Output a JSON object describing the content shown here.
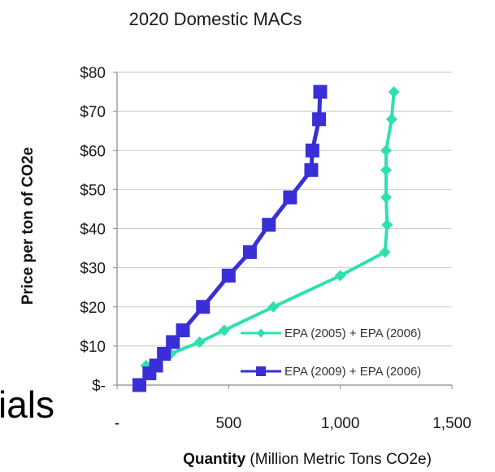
{
  "background_fragment": "ials",
  "chart_data": {
    "type": "line",
    "title": "2020 Domestic MACs",
    "ylabel": "Price per ton of CO2e",
    "xlabel_bold": "Quantity",
    "xlabel_rest": " (Million Metric Tons CO2e)",
    "xlim": [
      0,
      1500
    ],
    "ylim": [
      0,
      80
    ],
    "x_ticks": [
      0,
      500,
      1000,
      1500
    ],
    "x_tick_labels": [
      "-",
      "500",
      "1,000",
      "1,500"
    ],
    "y_ticks": [
      0,
      10,
      20,
      30,
      40,
      50,
      60,
      70,
      80
    ],
    "y_tick_labels": [
      "$-",
      "$10",
      "$20",
      "$30",
      "$40",
      "$50",
      "$60",
      "$70",
      "$80"
    ],
    "grid": "horizontal",
    "legend_position": "lower-right",
    "series": [
      {
        "name": "EPA (2005) + EPA (2006)",
        "color": "#2ee0b0",
        "marker": "diamond",
        "points": [
          [
            130,
            5
          ],
          [
            240,
            8
          ],
          [
            370,
            11
          ],
          [
            480,
            14
          ],
          [
            700,
            20
          ],
          [
            1000,
            28
          ],
          [
            1200,
            34
          ],
          [
            1210,
            41
          ],
          [
            1205,
            48
          ],
          [
            1205,
            55
          ],
          [
            1205,
            60
          ],
          [
            1230,
            68
          ],
          [
            1240,
            75
          ]
        ]
      },
      {
        "name": "EPA (2009) + EPA (2006)",
        "color": "#3a2fd6",
        "marker": "square",
        "points": [
          [
            100,
            0
          ],
          [
            145,
            3
          ],
          [
            175,
            5
          ],
          [
            210,
            8
          ],
          [
            250,
            11
          ],
          [
            295,
            14
          ],
          [
            385,
            20
          ],
          [
            500,
            28
          ],
          [
            595,
            34
          ],
          [
            680,
            41
          ],
          [
            775,
            48
          ],
          [
            870,
            55
          ],
          [
            875,
            60
          ],
          [
            905,
            68
          ],
          [
            910,
            75
          ]
        ]
      }
    ]
  }
}
